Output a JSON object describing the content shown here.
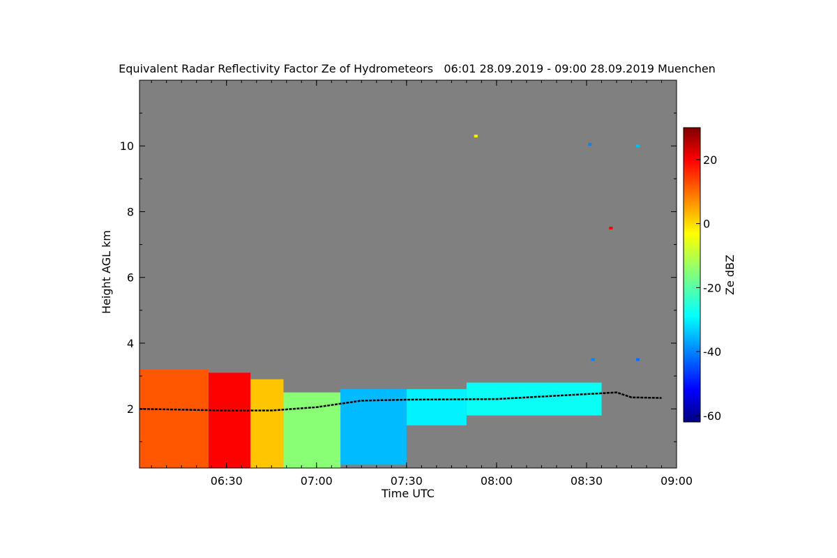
{
  "chart_data": {
    "type": "heatmap",
    "title": "Equivalent Radar Reflectivity Factor Ze of Hydrometeors   06:01 28.09.2019 - 09:00 28.09.2019 Muenchen",
    "xlabel": "Time UTC",
    "ylabel": "Height AGL km",
    "x_ticks": [
      "06:30",
      "07:00",
      "07:30",
      "08:00",
      "08:30",
      "09:00"
    ],
    "y_ticks": [
      "2",
      "4",
      "6",
      "8",
      "10"
    ],
    "xlim": [
      "06:01",
      "09:00"
    ],
    "ylim": [
      0.2,
      12.0
    ],
    "colorbar": {
      "label": "Ze dBZ",
      "range": [
        -62,
        30
      ],
      "ticks": [
        "20",
        "0",
        "-20",
        "-40",
        "-60"
      ],
      "colormap": "jet"
    },
    "background_color": "#808080",
    "regions": [
      {
        "x_start": "06:01",
        "x_end": "06:24",
        "base_km": 0.2,
        "top_km": 3.2,
        "ze_dbz": 12
      },
      {
        "x_start": "06:24",
        "x_end": "06:38",
        "base_km": 0.2,
        "top_km": 3.1,
        "ze_dbz": 20
      },
      {
        "x_start": "06:38",
        "x_end": "06:49",
        "base_km": 0.2,
        "top_km": 2.9,
        "ze_dbz": 2
      },
      {
        "x_start": "06:49",
        "x_end": "07:08",
        "base_km": 0.2,
        "top_km": 2.5,
        "ze_dbz": -15
      },
      {
        "x_start": "07:08",
        "x_end": "07:30",
        "base_km": 0.3,
        "top_km": 2.6,
        "ze_dbz": -35
      },
      {
        "x_start": "07:30",
        "x_end": "07:50",
        "base_km": 1.5,
        "top_km": 2.6,
        "ze_dbz": -30
      },
      {
        "x_start": "07:50",
        "x_end": "08:35",
        "base_km": 1.8,
        "top_km": 2.8,
        "ze_dbz": -28
      }
    ],
    "cloud_base": [
      {
        "x": "06:01",
        "height_km": 2.0
      },
      {
        "x": "06:30",
        "height_km": 1.95
      },
      {
        "x": "06:45",
        "height_km": 1.95
      },
      {
        "x": "07:00",
        "height_km": 2.05
      },
      {
        "x": "07:15",
        "height_km": 2.25
      },
      {
        "x": "07:30",
        "height_km": 2.28
      },
      {
        "x": "08:00",
        "height_km": 2.3
      },
      {
        "x": "08:30",
        "height_km": 2.45
      },
      {
        "x": "08:40",
        "height_km": 2.5
      },
      {
        "x": "08:45",
        "height_km": 2.35
      },
      {
        "x": "08:55",
        "height_km": 2.33
      }
    ],
    "isolated_echoes": [
      {
        "x": "07:53",
        "height_km": 10.3,
        "ze_dbz": -2
      },
      {
        "x": "08:31",
        "height_km": 10.05,
        "ze_dbz": -40
      },
      {
        "x": "08:47",
        "height_km": 10.0,
        "ze_dbz": -35
      },
      {
        "x": "08:38",
        "height_km": 7.5,
        "ze_dbz": 20
      },
      {
        "x": "08:32",
        "height_km": 3.5,
        "ze_dbz": -40
      },
      {
        "x": "08:47",
        "height_km": 3.5,
        "ze_dbz": -42
      }
    ]
  }
}
